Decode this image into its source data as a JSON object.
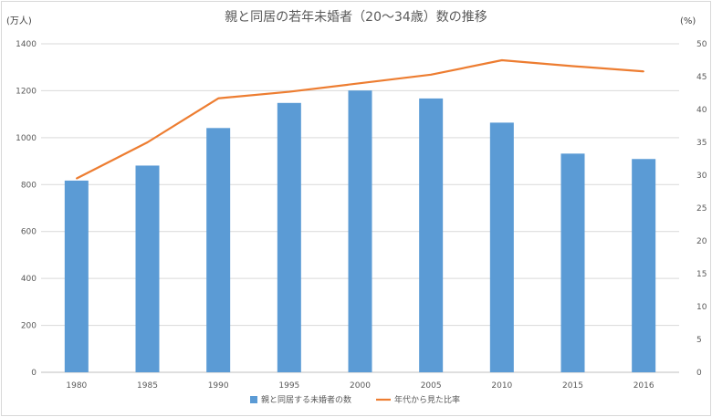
{
  "chart_data": {
    "type": "bar",
    "title": "親と同居の若年未婚者（20～34歳）数の推移",
    "categories": [
      "1980",
      "1985",
      "1990",
      "1995",
      "2000",
      "2005",
      "2010",
      "2015",
      "2016"
    ],
    "y_left_unit": "(万人)",
    "y_right_unit": "(%)",
    "ylim_left": [
      0,
      1400
    ],
    "ylim_right": [
      0,
      50
    ],
    "y_left_ticks": [
      0,
      200,
      400,
      600,
      800,
      1000,
      1200,
      1400
    ],
    "y_right_ticks": [
      0,
      5,
      10,
      15,
      20,
      25,
      30,
      35,
      40,
      45,
      50
    ],
    "grid": true,
    "legend_position": "bottom",
    "series": [
      {
        "name": "親と同居する未婚者の数",
        "kind": "bar",
        "axis": "left",
        "color": "#5b9bd5",
        "values": [
          817,
          881,
          1041,
          1148,
          1201,
          1167,
          1064,
          932,
          909
        ]
      },
      {
        "name": "年代から見た比率",
        "kind": "line",
        "axis": "right",
        "color": "#ed7d31",
        "values": [
          29.5,
          35.0,
          41.7,
          42.7,
          44.0,
          45.3,
          47.5,
          46.6,
          45.8
        ]
      }
    ]
  }
}
